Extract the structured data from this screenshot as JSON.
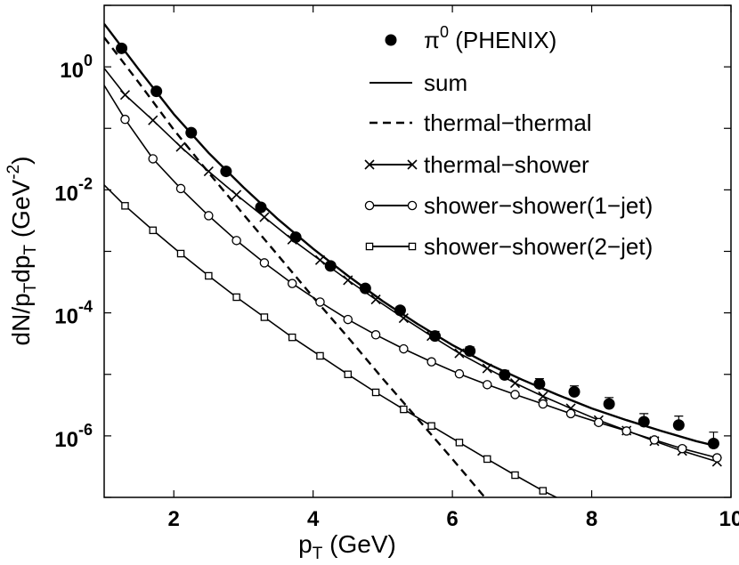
{
  "chart_data": {
    "type": "line",
    "y_scale": "log",
    "xlim": [
      1,
      10
    ],
    "ylim": [
      1e-07,
      10
    ],
    "x_ticks": [
      2,
      4,
      6,
      8,
      10
    ],
    "x_tick_labels": [
      "2",
      "4",
      "6",
      "8",
      "10"
    ],
    "y_ticks": [
      1,
      0.01,
      0.0001,
      1e-06
    ],
    "y_tick_labels": [
      {
        "base": "10",
        "exp": "0"
      },
      {
        "base": "10",
        "exp": "-2"
      },
      {
        "base": "10",
        "exp": "-4"
      },
      {
        "base": "10",
        "exp": "-6"
      }
    ],
    "xlabel": {
      "main": "p",
      "sub": "T",
      "rest": " (GeV)"
    },
    "ylabel": {
      "parts": [
        "dN/p",
        "T",
        "dp",
        "T",
        " (GeV",
        "-2",
        ")"
      ]
    },
    "grid": false,
    "legend_position": "top-right",
    "legend": [
      {
        "marker": "filled-circle",
        "line": "none",
        "label": "π",
        "label_sup": "0",
        "label_rest": " (PHENIX)"
      },
      {
        "marker": "none",
        "line": "solid",
        "label": "sum"
      },
      {
        "marker": "none",
        "line": "dashed",
        "label": "thermal−thermal"
      },
      {
        "marker": "x",
        "line": "solid",
        "label": "thermal−shower"
      },
      {
        "marker": "open-circle",
        "line": "solid",
        "label": "shower−shower(1−jet)"
      },
      {
        "marker": "square",
        "line": "solid",
        "label": "shower−shower(2−jet)"
      }
    ],
    "series": [
      {
        "name": "π0 (PHENIX)",
        "style": "points",
        "marker": "filled-circle",
        "x": [
          1.25,
          1.75,
          2.25,
          2.75,
          3.25,
          3.75,
          4.25,
          4.75,
          5.25,
          5.75,
          6.25,
          6.75,
          7.25,
          7.75,
          8.25,
          8.75,
          9.25,
          9.75
        ],
        "y": [
          2.0,
          0.4,
          0.085,
          0.02,
          0.0052,
          0.0017,
          0.00058,
          0.00025,
          0.00011,
          4.2e-05,
          2.4e-05,
          9.8e-06,
          7e-06,
          5.2e-06,
          3.3e-06,
          1.7e-06,
          1.5e-06,
          7.5e-07
        ],
        "yerr_upper": [
          0,
          0,
          0,
          0,
          0,
          0,
          0,
          0,
          0,
          8e-06,
          4e-06,
          1.8e-06,
          1.5e-06,
          1.3e-06,
          9e-07,
          6e-07,
          6e-07,
          4e-07
        ]
      },
      {
        "name": "sum",
        "style": "solid",
        "marker": "none",
        "x": [
          1.0,
          1.5,
          2.0,
          2.5,
          3.0,
          3.5,
          4.0,
          4.5,
          5.0,
          5.5,
          6.0,
          6.5,
          7.0,
          7.5,
          8.0,
          8.5,
          9.0,
          9.5,
          9.8
        ],
        "y": [
          5.0,
          0.9,
          0.17,
          0.04,
          0.011,
          0.0033,
          0.0011,
          0.0004,
          0.000155,
          6.6e-05,
          3e-05,
          1.5e-05,
          8.2e-06,
          4.7e-06,
          2.8e-06,
          1.8e-06,
          1.2e-06,
          8.2e-07,
          6.8e-07
        ]
      },
      {
        "name": "thermal−thermal",
        "style": "dashed",
        "marker": "none",
        "x": [
          1.0,
          1.5,
          2.0,
          2.5,
          3.0,
          3.5,
          4.0,
          4.5,
          5.0,
          5.5,
          6.0,
          6.5
        ],
        "y": [
          3.0,
          0.55,
          0.095,
          0.019,
          0.004,
          0.00085,
          0.00018,
          4e-05,
          8.5e-06,
          1.9e-06,
          4.2e-07,
          9e-08
        ]
      },
      {
        "name": "thermal−shower",
        "style": "solid",
        "marker": "x",
        "x": [
          1.0,
          1.3,
          1.7,
          2.1,
          2.5,
          2.9,
          3.3,
          3.7,
          4.1,
          4.5,
          4.9,
          5.3,
          5.7,
          6.1,
          6.5,
          6.9,
          7.3,
          7.7,
          8.1,
          8.5,
          8.9,
          9.3,
          9.8
        ],
        "y": [
          0.95,
          0.35,
          0.135,
          0.05,
          0.02,
          0.0083,
          0.0036,
          0.00155,
          0.00072,
          0.00034,
          0.000165,
          8.2e-05,
          4.2e-05,
          2.2e-05,
          1.25e-05,
          7.2e-06,
          4.4e-06,
          2.8e-06,
          1.8e-06,
          1.22e-06,
          8.2e-07,
          5.7e-07,
          3.8e-07
        ]
      },
      {
        "name": "shower−shower(1−jet)",
        "style": "solid",
        "marker": "open-circle",
        "x": [
          1.0,
          1.3,
          1.7,
          2.1,
          2.5,
          2.9,
          3.3,
          3.7,
          4.1,
          4.5,
          4.9,
          5.3,
          5.7,
          6.1,
          6.5,
          6.9,
          7.3,
          7.7,
          8.1,
          8.5,
          8.9,
          9.3,
          9.8
        ],
        "y": [
          0.5,
          0.14,
          0.032,
          0.0105,
          0.0038,
          0.0015,
          0.00065,
          0.0003,
          0.00015,
          7.8e-05,
          4.4e-05,
          2.6e-05,
          1.6e-05,
          1.02e-05,
          6.8e-06,
          4.7e-06,
          3.3e-06,
          2.3e-06,
          1.65e-06,
          1.2e-06,
          8.6e-07,
          6.2e-07,
          4.4e-07
        ]
      },
      {
        "name": "shower−shower(2−jet)",
        "style": "solid",
        "marker": "square",
        "x": [
          1.0,
          1.3,
          1.7,
          2.1,
          2.5,
          2.9,
          3.3,
          3.7,
          4.1,
          4.5,
          4.9,
          5.3,
          5.7,
          6.1,
          6.5,
          6.9,
          7.3,
          7.8
        ],
        "y": [
          0.012,
          0.0055,
          0.0022,
          0.00092,
          0.0004,
          0.00018,
          8.5e-05,
          4e-05,
          2e-05,
          1e-05,
          5.1e-06,
          2.7e-06,
          1.45e-06,
          7.8e-07,
          4.2e-07,
          2.3e-07,
          1.28e-07,
          6.8e-08
        ]
      }
    ]
  }
}
